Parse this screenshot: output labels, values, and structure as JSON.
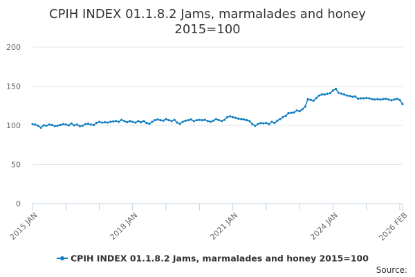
{
  "chart_data": {
    "type": "line",
    "title_lines": [
      "CPIH INDEX 01.1.8.2 Jams, marmalades and honey",
      "2015=100"
    ],
    "xlabel": "",
    "ylabel": "",
    "ylim": [
      0,
      200
    ],
    "y_ticks": [
      "0",
      "50",
      "100",
      "150",
      "200"
    ],
    "x_range": [
      "2015-01",
      "2026-02"
    ],
    "x_ticks": [
      {
        "label": "2015 JAN",
        "date": "2015-01"
      },
      {
        "label": "2018 JAN",
        "date": "2018-01"
      },
      {
        "label": "2021 JAN",
        "date": "2021-01"
      },
      {
        "label": "2024 JAN",
        "date": "2024-01"
      },
      {
        "label": "2026 FEB",
        "date": "2026-02"
      }
    ],
    "grid": "horizontal",
    "legend_position": "bottom",
    "series": [
      {
        "name": "CPIH INDEX 01.1.8.2 Jams, marmalades and honey 2015=100",
        "color": "#0f7fc0",
        "marker": "circle",
        "data": [
          [
            "2015-01",
            101.5
          ],
          [
            "2015-02",
            101.0
          ],
          [
            "2015-03",
            99.5
          ],
          [
            "2015-04",
            97.0
          ],
          [
            "2015-05",
            100.0
          ],
          [
            "2015-06",
            99.5
          ],
          [
            "2015-07",
            101.0
          ],
          [
            "2015-08",
            100.5
          ],
          [
            "2015-09",
            99.0
          ],
          [
            "2015-10",
            99.5
          ],
          [
            "2015-11",
            100.5
          ],
          [
            "2015-12",
            101.5
          ],
          [
            "2016-01",
            101.0
          ],
          [
            "2016-02",
            100.0
          ],
          [
            "2016-03",
            102.5
          ],
          [
            "2016-04",
            100.0
          ],
          [
            "2016-05",
            101.0
          ],
          [
            "2016-06",
            99.0
          ],
          [
            "2016-07",
            99.5
          ],
          [
            "2016-08",
            101.5
          ],
          [
            "2016-09",
            102.0
          ],
          [
            "2016-10",
            101.0
          ],
          [
            "2016-11",
            100.5
          ],
          [
            "2016-12",
            103.0
          ],
          [
            "2017-01",
            104.5
          ],
          [
            "2017-02",
            103.5
          ],
          [
            "2017-03",
            104.0
          ],
          [
            "2017-04",
            103.5
          ],
          [
            "2017-05",
            104.5
          ],
          [
            "2017-06",
            105.0
          ],
          [
            "2017-07",
            105.5
          ],
          [
            "2017-08",
            104.5
          ],
          [
            "2017-09",
            107.0
          ],
          [
            "2017-10",
            105.5
          ],
          [
            "2017-11",
            104.0
          ],
          [
            "2017-12",
            105.5
          ],
          [
            "2018-01",
            104.5
          ],
          [
            "2018-02",
            103.5
          ],
          [
            "2018-03",
            105.5
          ],
          [
            "2018-04",
            104.0
          ],
          [
            "2018-05",
            105.5
          ],
          [
            "2018-06",
            103.0
          ],
          [
            "2018-07",
            102.0
          ],
          [
            "2018-08",
            104.5
          ],
          [
            "2018-09",
            106.5
          ],
          [
            "2018-10",
            107.5
          ],
          [
            "2018-11",
            106.5
          ],
          [
            "2018-12",
            106.0
          ],
          [
            "2019-01",
            108.0
          ],
          [
            "2019-02",
            106.5
          ],
          [
            "2019-03",
            105.5
          ],
          [
            "2019-04",
            107.0
          ],
          [
            "2019-05",
            103.5
          ],
          [
            "2019-06",
            102.0
          ],
          [
            "2019-07",
            104.5
          ],
          [
            "2019-08",
            106.0
          ],
          [
            "2019-09",
            106.5
          ],
          [
            "2019-10",
            107.5
          ],
          [
            "2019-11",
            105.5
          ],
          [
            "2019-12",
            106.5
          ],
          [
            "2020-01",
            107.0
          ],
          [
            "2020-02",
            106.5
          ],
          [
            "2020-03",
            107.0
          ],
          [
            "2020-04",
            105.5
          ],
          [
            "2020-05",
            104.5
          ],
          [
            "2020-06",
            106.0
          ],
          [
            "2020-07",
            108.0
          ],
          [
            "2020-08",
            106.5
          ],
          [
            "2020-09",
            105.5
          ],
          [
            "2020-10",
            107.0
          ],
          [
            "2020-11",
            110.5
          ],
          [
            "2020-12",
            111.5
          ],
          [
            "2021-01",
            110.5
          ],
          [
            "2021-02",
            109.5
          ],
          [
            "2021-03",
            108.5
          ],
          [
            "2021-04",
            108.0
          ],
          [
            "2021-05",
            107.5
          ],
          [
            "2021-06",
            106.5
          ],
          [
            "2021-07",
            105.5
          ],
          [
            "2021-08",
            101.5
          ],
          [
            "2021-09",
            99.5
          ],
          [
            "2021-10",
            101.5
          ],
          [
            "2021-11",
            103.0
          ],
          [
            "2021-12",
            102.5
          ],
          [
            "2022-01",
            103.0
          ],
          [
            "2022-02",
            101.5
          ],
          [
            "2022-03",
            104.5
          ],
          [
            "2022-04",
            103.0
          ],
          [
            "2022-05",
            106.0
          ],
          [
            "2022-06",
            108.0
          ],
          [
            "2022-07",
            110.5
          ],
          [
            "2022-08",
            112.0
          ],
          [
            "2022-09",
            115.5
          ],
          [
            "2022-10",
            116.0
          ],
          [
            "2022-11",
            116.5
          ],
          [
            "2022-12",
            119.0
          ],
          [
            "2023-01",
            118.0
          ],
          [
            "2023-02",
            120.5
          ],
          [
            "2023-03",
            124.0
          ],
          [
            "2023-04",
            133.5
          ],
          [
            "2023-05",
            132.5
          ],
          [
            "2023-06",
            131.5
          ],
          [
            "2023-07",
            135.0
          ],
          [
            "2023-08",
            138.0
          ],
          [
            "2023-09",
            139.5
          ],
          [
            "2023-10",
            139.5
          ],
          [
            "2023-11",
            140.5
          ],
          [
            "2023-12",
            141.0
          ],
          [
            "2024-01",
            144.5
          ],
          [
            "2024-02",
            146.5
          ],
          [
            "2024-03",
            141.5
          ],
          [
            "2024-04",
            140.5
          ],
          [
            "2024-05",
            139.5
          ],
          [
            "2024-06",
            138.0
          ],
          [
            "2024-07",
            137.5
          ],
          [
            "2024-08",
            136.5
          ],
          [
            "2024-09",
            137.0
          ],
          [
            "2024-10",
            134.0
          ],
          [
            "2024-11",
            134.5
          ],
          [
            "2024-12",
            134.5
          ],
          [
            "2025-01",
            135.0
          ],
          [
            "2025-02",
            134.5
          ],
          [
            "2025-03",
            133.5
          ],
          [
            "2025-04",
            133.0
          ],
          [
            "2025-05",
            133.5
          ],
          [
            "2025-06",
            133.0
          ],
          [
            "2025-07",
            133.5
          ],
          [
            "2025-08",
            134.0
          ],
          [
            "2025-09",
            133.0
          ],
          [
            "2025-10",
            132.0
          ],
          [
            "2025-11",
            133.0
          ],
          [
            "2025-12",
            134.0
          ],
          [
            "2026-01",
            132.5
          ],
          [
            "2026-02",
            127.0
          ]
        ]
      }
    ],
    "legend_entries": [
      "CPIH INDEX 01.1.8.2 Jams, marmalades and honey 2015=100"
    ],
    "source_label": "Source:"
  }
}
